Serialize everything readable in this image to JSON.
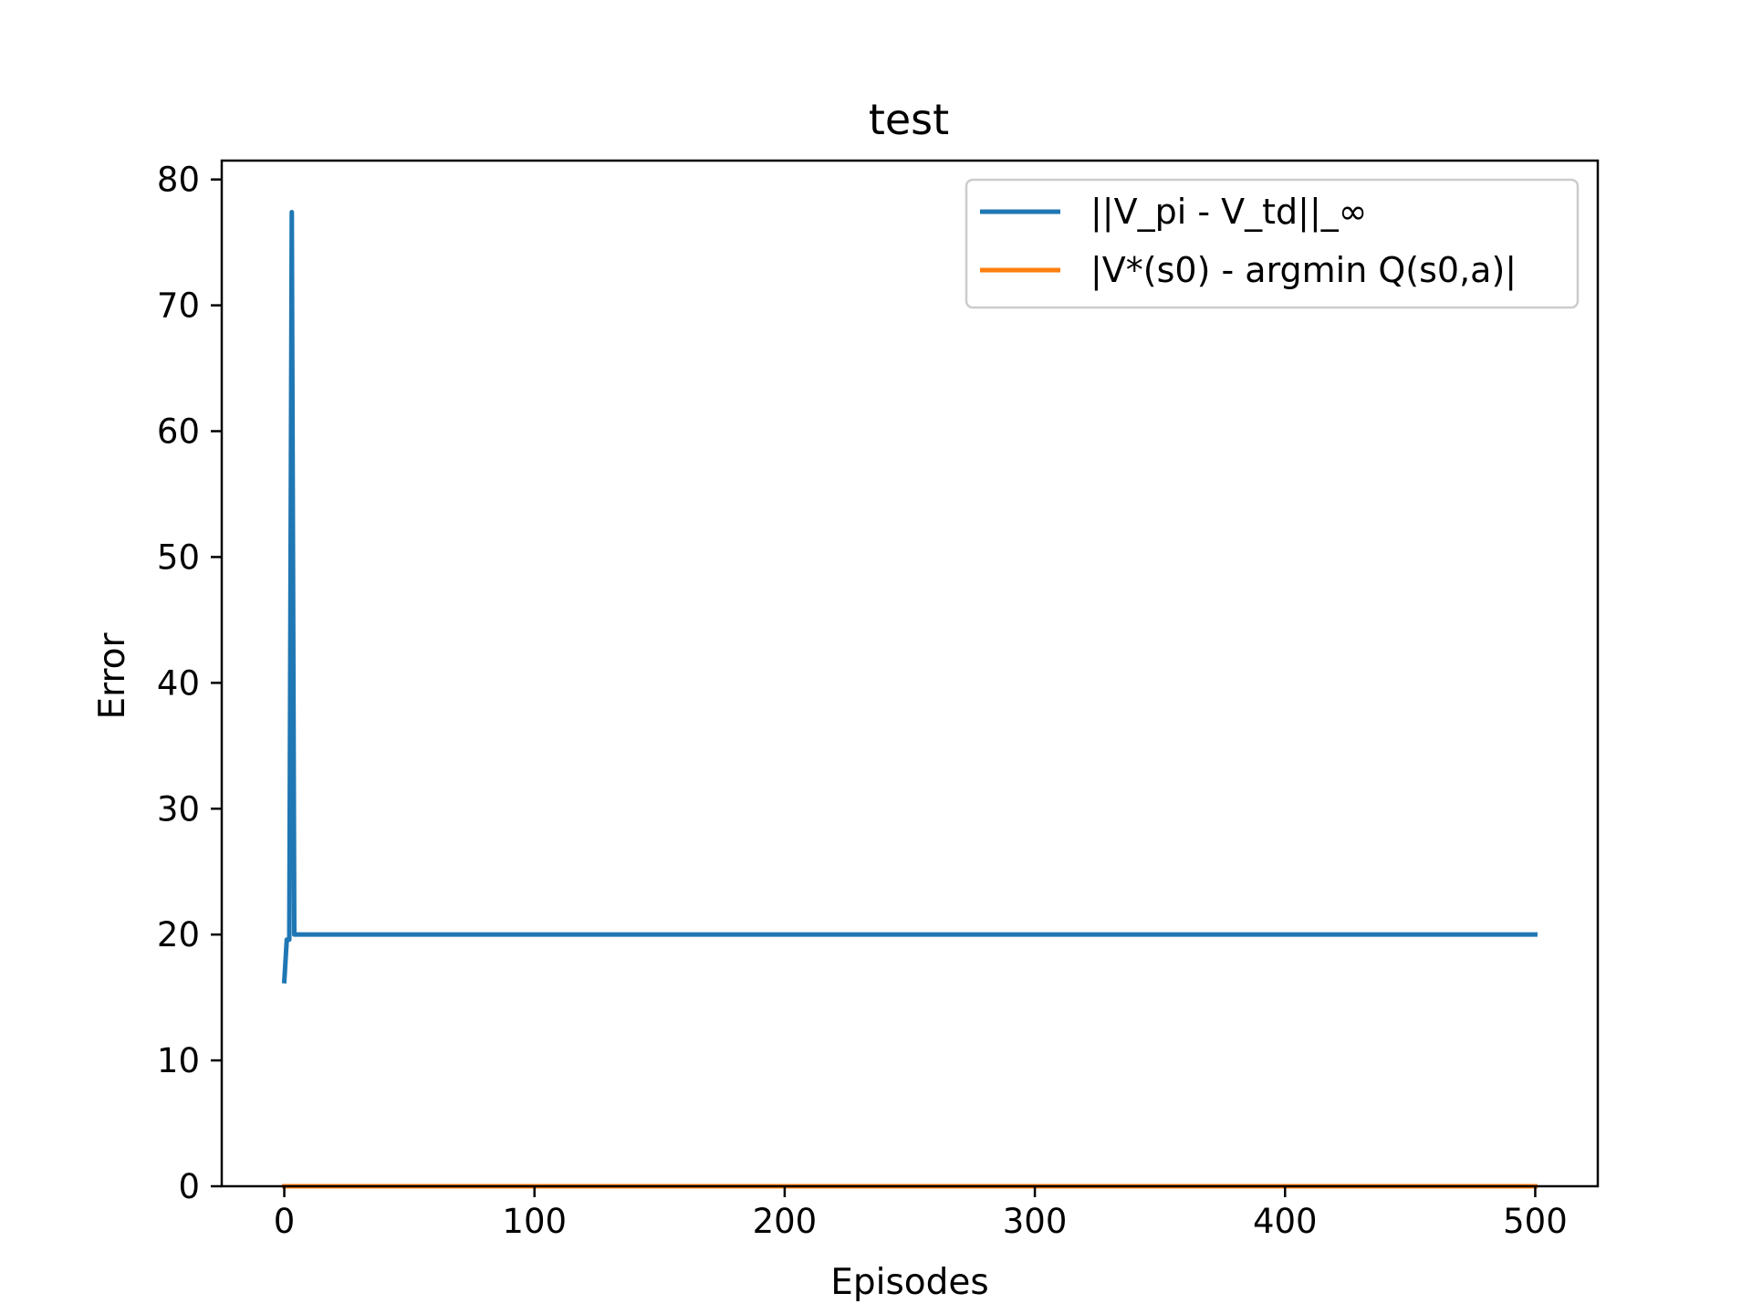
{
  "chart_data": {
    "type": "line",
    "title": "test",
    "xlabel": "Episodes",
    "ylabel": "Error",
    "xlim": [
      -25,
      525
    ],
    "ylim": [
      0,
      81.5
    ],
    "x_ticks": [
      0,
      100,
      200,
      300,
      400,
      500
    ],
    "y_ticks": [
      0,
      10,
      20,
      30,
      40,
      50,
      60,
      70,
      80
    ],
    "grid": false,
    "legend_position": "upper-right",
    "series": [
      {
        "name": "||V_pi - V_td||_∞",
        "color": "#1f77b4",
        "x": [
          0,
          1,
          2,
          3,
          4,
          5,
          500
        ],
        "y": [
          16.3,
          19.6,
          19.6,
          77.4,
          20.0,
          20.0,
          20.0
        ]
      },
      {
        "name": "|V*(s0) - argmin Q(s0,a)|",
        "color": "#ff7f0e",
        "x": [
          0,
          500
        ],
        "y": [
          0.0,
          0.0
        ]
      }
    ]
  }
}
